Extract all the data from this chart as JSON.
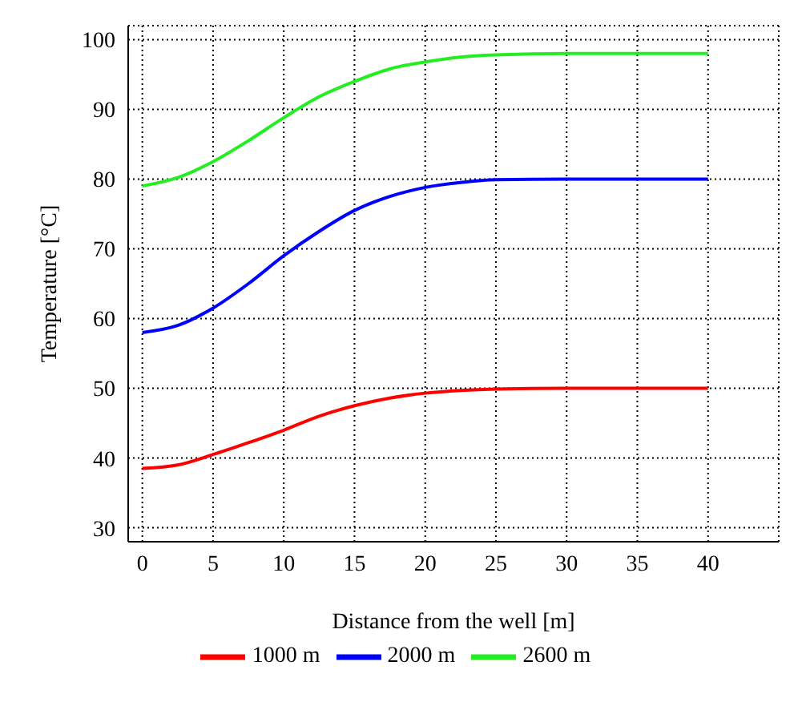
{
  "chart_data": {
    "type": "line",
    "xlabel": "Distance from the well [m]",
    "ylabel": "Temperature [°C]",
    "x": [
      0,
      2.5,
      5,
      7.5,
      10,
      12.5,
      15,
      17.5,
      20,
      22.5,
      25,
      30,
      35,
      40
    ],
    "series": [
      {
        "name": "1000 m",
        "color": "#ff0000",
        "values": [
          38.5,
          39,
          40.5,
          42.2,
          44,
          46,
          47.5,
          48.6,
          49.3,
          49.7,
          49.9,
          50,
          50,
          50
        ]
      },
      {
        "name": "2000 m",
        "color": "#0000ff",
        "values": [
          58,
          59,
          61.5,
          65,
          69,
          72.5,
          75.5,
          77.5,
          78.8,
          79.5,
          79.9,
          80,
          80,
          80
        ]
      },
      {
        "name": "2600 m",
        "color": "#22ee22",
        "values": [
          79,
          80.2,
          82.5,
          85.5,
          88.8,
          91.8,
          94,
          95.8,
          96.8,
          97.5,
          97.8,
          98,
          98,
          98
        ]
      }
    ],
    "xlim": [
      -1,
      45
    ],
    "xticks": [
      0,
      5,
      10,
      15,
      20,
      25,
      30,
      35,
      40
    ],
    "ylim": [
      28,
      102
    ],
    "yticks": [
      30,
      40,
      50,
      60,
      70,
      80,
      90,
      100
    ],
    "grid": true,
    "legend": "bottom",
    "marker": "none",
    "line_style": "solid"
  }
}
